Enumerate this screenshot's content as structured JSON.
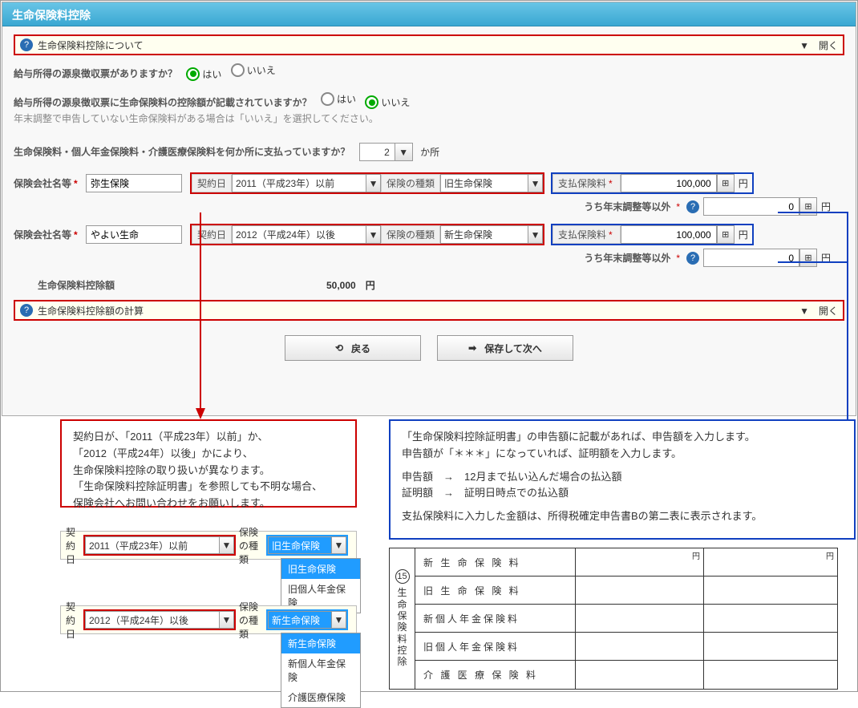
{
  "title": "生命保険料控除",
  "help1": {
    "label": "生命保険料控除について",
    "toggle": "▼　開く"
  },
  "q1": {
    "label": "給与所得の源泉徴収票がありますか？",
    "yes": "はい",
    "no": "いいえ",
    "value": "yes"
  },
  "q2": {
    "label": "給与所得の源泉徴収票に生命保険料の控除額が記載されていますか？",
    "yes": "はい",
    "no": "いいえ",
    "value": "no",
    "note": "年末調整で申告していない生命保険料がある場合は「いいえ」を選択してください。"
  },
  "q3": {
    "label": "生命保険料・個人年金保険料・介護医療保険料を何か所に支払っていますか？",
    "count": "2",
    "unit": "か所"
  },
  "row1": {
    "company_label": "保険会社名等",
    "company": "弥生保険",
    "contract_label": "契約日",
    "contract": "2011（平成23年）以前",
    "type_label": "保険の種類",
    "type": "旧生命保険",
    "paid_label": "支払保険料",
    "paid": "100,000",
    "unit": "円",
    "sub_label": "うち年末調整等以外",
    "sub_value": "0"
  },
  "row2": {
    "company_label": "保険会社名等",
    "company": "やよい生命",
    "contract_label": "契約日",
    "contract": "2012（平成24年）以後",
    "type_label": "保険の種類",
    "type": "新生命保険",
    "paid_label": "支払保険料",
    "paid": "100,000",
    "unit": "円",
    "sub_label": "うち年末調整等以外",
    "sub_value": "0"
  },
  "deduction": {
    "label": "生命保険料控除額",
    "value": "50,000",
    "unit": "円"
  },
  "help2": {
    "label": "生命保険料控除額の計算",
    "toggle": "▼　開く"
  },
  "buttons": {
    "back": "戻る",
    "next": "保存して次へ"
  },
  "callout_red": {
    "l1": "契約日が、「2011（平成23年）以前」か、",
    "l2": "「2012（平成24年）以後」かにより、",
    "l3": "生命保険料控除の取り扱いが異なります。",
    "l4": "「生命保険料控除証明書」を参照しても不明な場合、",
    "l5": "保険会社へお問い合わせをお願いします。"
  },
  "callout_blue": {
    "l1": "「生命保険料控除証明書」の申告額に記載があれば、申告額を入力します。",
    "l2": "申告額が「＊＊＊」になっていれば、証明額を入力します。",
    "l3": "申告額　→　12月まで払い込んだ場合の払込額",
    "l4": "証明額　→　証明日時点での払込額",
    "l5": "支払保険料に入力した金額は、所得税確定申告書Bの第二表に表示されます。"
  },
  "mini1": {
    "contract_label": "契約日",
    "contract": "2011（平成23年）以前",
    "type_label": "保険の種類",
    "type": "旧生命保険",
    "opts": [
      "旧生命保険",
      "旧個人年金保険"
    ]
  },
  "mini2": {
    "contract_label": "契約日",
    "contract": "2012（平成24年）以後",
    "type_label": "保険の種類",
    "type": "新生命保険",
    "opts": [
      "新生命保険",
      "新個人年金保険",
      "介護医療保険"
    ]
  },
  "table": {
    "num": "15",
    "side": "生命保険料控除",
    "yen": "円",
    "rows": [
      "新 生 命 保 険 料",
      "旧 生 命 保 険 料",
      "新個人年金保険料",
      "旧個人年金保険料",
      "介 護 医 療 保 険 料"
    ]
  },
  "colors": {
    "red": "#c00",
    "blue": "#1040c0",
    "accent": "#209cff"
  }
}
